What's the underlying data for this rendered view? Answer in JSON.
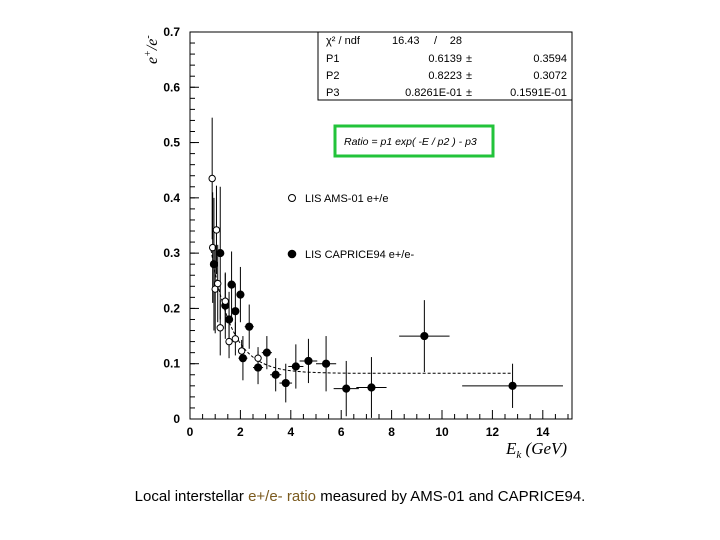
{
  "chart_data": {
    "type": "scatter",
    "xlabel": "E_k (GeV)",
    "ylabel": "e+/e-",
    "xlim": [
      0,
      15.2
    ],
    "ylim": [
      0,
      0.7
    ],
    "x_ticks": [
      0,
      2,
      4,
      6,
      8,
      10,
      12,
      14
    ],
    "y_ticks": [
      0,
      0.1,
      0.2,
      0.3,
      0.4,
      0.5,
      0.6,
      0.7
    ],
    "grid": false,
    "legend_position": "center-right",
    "fit_box": {
      "rows": [
        {
          "label": "χ² / ndf",
          "value": "16.43",
          "sep": "/",
          "err": "28"
        },
        {
          "label": "P1",
          "value": "0.6139",
          "sep": "±",
          "err": "0.3594"
        },
        {
          "label": "P2",
          "value": "0.8223",
          "sep": "±",
          "err": "0.3072"
        },
        {
          "label": "P3",
          "value": "0.8261E-01",
          "sep": "±",
          "err": "0.1591E-01"
        }
      ]
    },
    "formula": "Ratio = p1 exp( -E / p2 ) - p3",
    "formula_border_color": "#22c33a",
    "series": [
      {
        "name": "LIS AMS-01 e+/e",
        "marker": "open-circle",
        "points": [
          {
            "x": 0.88,
            "y": 0.435,
            "yerr": 0.11
          },
          {
            "x": 0.9,
            "y": 0.31,
            "yerr": 0.1
          },
          {
            "x": 1.0,
            "y": 0.235,
            "yerr": 0.08
          },
          {
            "x": 1.05,
            "y": 0.342,
            "yerr": 0.08
          },
          {
            "x": 1.1,
            "y": 0.245,
            "yerr": 0.07
          },
          {
            "x": 1.2,
            "y": 0.165,
            "yerr": 0.05
          },
          {
            "x": 1.4,
            "y": 0.213,
            "yerr": 0.05
          },
          {
            "x": 1.55,
            "y": 0.14,
            "yerr": 0.03
          },
          {
            "x": 1.8,
            "y": 0.145,
            "yerr": 0.03
          },
          {
            "x": 2.05,
            "y": 0.123,
            "yerr": 0.02
          },
          {
            "x": 2.7,
            "y": 0.11,
            "yerr": 0.02
          }
        ]
      },
      {
        "name": "LIS CAPRICE94 e+/e-",
        "marker": "filled-circle",
        "points": [
          {
            "x": 0.95,
            "y": 0.28,
            "yerr": 0.12,
            "xerr": 0.1
          },
          {
            "x": 1.2,
            "y": 0.3,
            "yerr": 0.12,
            "xerr": 0.1
          },
          {
            "x": 1.4,
            "y": 0.205,
            "yerr": 0.06,
            "xerr": 0.12
          },
          {
            "x": 1.55,
            "y": 0.18,
            "yerr": 0.05,
            "xerr": 0.12
          },
          {
            "x": 1.65,
            "y": 0.243,
            "yerr": 0.06,
            "xerr": 0.12
          },
          {
            "x": 1.8,
            "y": 0.195,
            "yerr": 0.05,
            "xerr": 0.12
          },
          {
            "x": 2.0,
            "y": 0.225,
            "yerr": 0.05,
            "xerr": 0.15
          },
          {
            "x": 2.1,
            "y": 0.11,
            "yerr": 0.04,
            "xerr": 0.18
          },
          {
            "x": 2.35,
            "y": 0.167,
            "yerr": 0.04,
            "xerr": 0.18
          },
          {
            "x": 2.7,
            "y": 0.093,
            "yerr": 0.03,
            "xerr": 0.2
          },
          {
            "x": 3.05,
            "y": 0.12,
            "yerr": 0.03,
            "xerr": 0.2
          },
          {
            "x": 3.4,
            "y": 0.08,
            "yerr": 0.03,
            "xerr": 0.22
          },
          {
            "x": 3.8,
            "y": 0.065,
            "yerr": 0.035,
            "xerr": 0.25
          },
          {
            "x": 4.2,
            "y": 0.095,
            "yerr": 0.04,
            "xerr": 0.3
          },
          {
            "x": 4.7,
            "y": 0.105,
            "yerr": 0.04,
            "xerr": 0.35
          },
          {
            "x": 5.4,
            "y": 0.1,
            "yerr": 0.05,
            "xerr": 0.4
          },
          {
            "x": 6.2,
            "y": 0.055,
            "yerr": 0.05,
            "xerr": 0.5
          },
          {
            "x": 7.2,
            "y": 0.057,
            "yerr": 0.055,
            "xerr": 0.6
          },
          {
            "x": 9.3,
            "y": 0.15,
            "yerr": 0.065,
            "xerr": 1.0
          },
          {
            "x": 12.8,
            "y": 0.06,
            "yerr": 0.04,
            "xerr": 2.0
          }
        ]
      }
    ],
    "fit": {
      "p1": 0.6139,
      "p2": 0.8223,
      "p3": 0.08261,
      "x_range": [
        0.8,
        12.8
      ]
    }
  },
  "caption": {
    "before": "Local interstellar ",
    "highlight": "e+/e- ratio",
    "after": " measured by AMS-01 and CAPRICE94."
  }
}
